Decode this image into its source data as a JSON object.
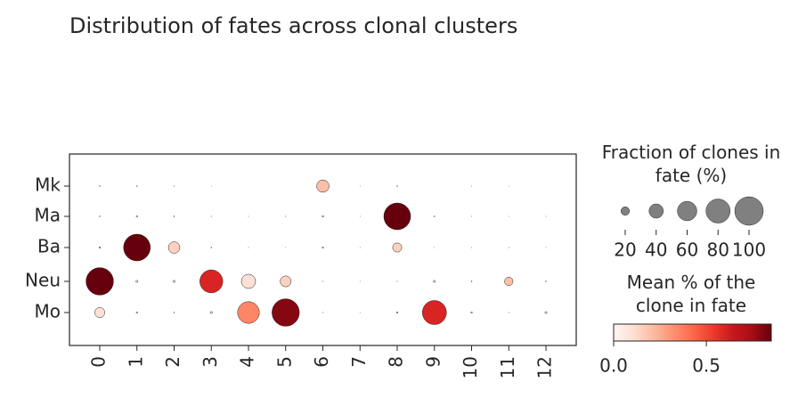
{
  "chart_data": {
    "type": "dotplot",
    "title": "Distribution of fates across clonal clusters",
    "x_categories": [
      "0",
      "1",
      "2",
      "3",
      "4",
      "5",
      "6",
      "7",
      "8",
      "9",
      "10",
      "11",
      "12"
    ],
    "y_categories": [
      "Mk",
      "Ma",
      "Ba",
      "Neu",
      "Mo"
    ],
    "sizes": [
      [
        1,
        1,
        0.5,
        0.3,
        0,
        0,
        33,
        0.3,
        1,
        0,
        0.3,
        0.3,
        0
      ],
      [
        1,
        2,
        1,
        0.5,
        0.3,
        0.5,
        2,
        0.3,
        92,
        1,
        0.3,
        0.3,
        0.3
      ],
      [
        2,
        92,
        30,
        1,
        0.3,
        0.3,
        2,
        0.3,
        22,
        0.3,
        0.3,
        0.5,
        0.3
      ],
      [
        95,
        3,
        3,
        75,
        40,
        28,
        0.5,
        0.3,
        0.5,
        3,
        1,
        20,
        1
      ],
      [
        25,
        2,
        1,
        3,
        70,
        95,
        0.5,
        0.3,
        2,
        80,
        2,
        0.5,
        3
      ]
    ],
    "colors": [
      [
        0.02,
        0.02,
        0.01,
        0.01,
        0,
        0,
        0.2,
        0.01,
        0.03,
        0,
        0.01,
        0.01,
        0
      ],
      [
        0.02,
        0.03,
        0.02,
        0.01,
        0.01,
        0.01,
        0.03,
        0.01,
        0.85,
        0.02,
        0.01,
        0.01,
        0.01
      ],
      [
        0.03,
        0.85,
        0.15,
        0.02,
        0.01,
        0.01,
        0.03,
        0.01,
        0.15,
        0.01,
        0.01,
        0.01,
        0.01
      ],
      [
        0.85,
        0.03,
        0.03,
        0.6,
        0.1,
        0.15,
        0.01,
        0.01,
        0.01,
        0.03,
        0.02,
        0.2,
        0.02
      ],
      [
        0.1,
        0.03,
        0.02,
        0.03,
        0.35,
        0.8,
        0.01,
        0.01,
        0.03,
        0.6,
        0.03,
        0.01,
        0.03
      ]
    ],
    "colormap": "Reds",
    "size_legend": {
      "title": "Fraction of clones in fate (%)",
      "ticks": [
        20,
        40,
        60,
        80,
        100
      ]
    },
    "colorbar": {
      "title": "Mean % of the clone in fate",
      "lim": [
        0,
        0.85
      ],
      "ticks": [
        {
          "value": 0,
          "label": "0.0"
        },
        0.5
      ]
    }
  }
}
